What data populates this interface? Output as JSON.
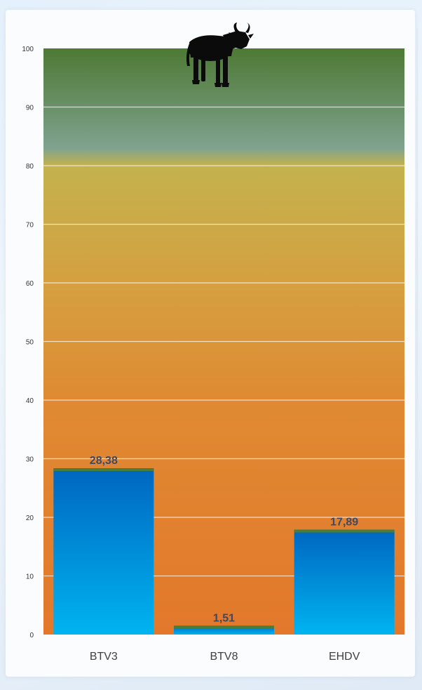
{
  "chart_data": {
    "type": "bar",
    "categories": [
      "BTV3",
      "BTV8",
      "EHDV"
    ],
    "values": [
      28.38,
      1.51,
      17.89
    ],
    "value_labels": [
      "28,38",
      "1,51",
      "17,89"
    ],
    "ylim": [
      0,
      100
    ],
    "yticks": [
      "0",
      "10",
      "20",
      "30",
      "40",
      "50",
      "60",
      "70",
      "80",
      "90",
      "100"
    ],
    "title": "",
    "xlabel": "",
    "ylabel": "",
    "grid": true,
    "icon": "cow-icon",
    "colors": {
      "bar_top": "#0066c0",
      "bar_bottom": "#00b4f0",
      "bar_cap": "#4a7c3a",
      "bg_green": "#4d7a35",
      "bg_teal": "#7fa38f",
      "bg_yellow": "#c8b24a",
      "bg_orange": "#e37a2c",
      "value_label": "#3b4a66",
      "category_label": "#404040",
      "tick_label": "#333333"
    }
  }
}
